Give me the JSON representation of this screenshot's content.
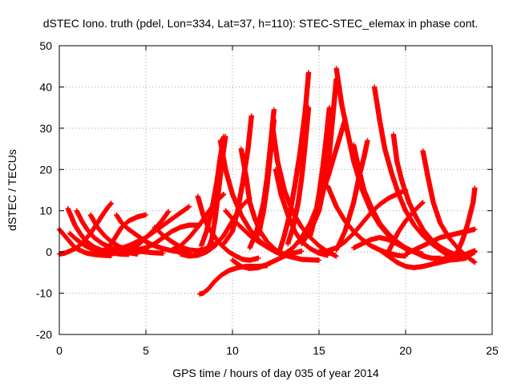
{
  "chart_data": {
    "type": "scatter",
    "title": "dSTEC Iono. truth (pdel, Lon=334, Lat=37, h=110): STEC-STEC_elemax in phase cont.",
    "xlabel": "GPS time / hours of day 035 of year 2014",
    "ylabel": "dSTEC  / TECUs",
    "xlim": [
      0,
      25
    ],
    "ylim": [
      -20,
      50
    ],
    "xticks": [
      0,
      5,
      10,
      15,
      20,
      25
    ],
    "yticks": [
      -20,
      -10,
      0,
      10,
      20,
      30,
      40,
      50
    ],
    "grid": true,
    "marker": "plus",
    "colors": {
      "series": "#ff0000"
    },
    "series": [
      {
        "x": [
          0.0,
          0.2,
          0.4,
          0.6,
          0.8,
          1.0,
          1.3,
          1.6,
          2.0,
          2.5,
          3.0
        ],
        "y": [
          5.5,
          4.5,
          3.5,
          2.5,
          1.5,
          0.8,
          0.2,
          -0.3,
          -0.6,
          -0.8,
          -0.9
        ]
      },
      {
        "x": [
          0.0,
          0.3,
          0.6,
          1.0,
          1.4,
          1.8,
          2.2,
          2.5,
          2.8,
          3.0
        ],
        "y": [
          -0.5,
          -0.3,
          0.2,
          1.0,
          2.5,
          4.5,
          7.0,
          9.0,
          10.8,
          11.8
        ]
      },
      {
        "x": [
          0.5,
          0.7,
          0.9,
          1.2,
          1.5,
          2.0,
          2.5,
          3.0,
          3.5,
          4.0
        ],
        "y": [
          10.5,
          8.5,
          6.5,
          4.5,
          2.8,
          1.2,
          0.3,
          -0.2,
          -0.5,
          -0.6
        ]
      },
      {
        "x": [
          0.6,
          1.0,
          1.5,
          2.0,
          2.4,
          2.8,
          3.0,
          3.3,
          3.6,
          4.0,
          4.5,
          5.0
        ],
        "y": [
          4.5,
          3.0,
          1.5,
          0.5,
          0.2,
          0.8,
          2.0,
          4.0,
          6.0,
          7.5,
          8.5,
          9.0
        ]
      },
      {
        "x": [
          1.0,
          1.3,
          1.6,
          2.0,
          2.5,
          3.0,
          3.5,
          4.0,
          4.5
        ],
        "y": [
          10.0,
          7.5,
          5.5,
          3.5,
          2.0,
          1.0,
          0.3,
          -0.2,
          -0.5
        ]
      },
      {
        "x": [
          1.8,
          2.2,
          2.6,
          3.0,
          3.5,
          4.0,
          4.5,
          5.0,
          5.5,
          6.0
        ],
        "y": [
          9.0,
          6.0,
          4.0,
          2.5,
          1.2,
          0.5,
          0.2,
          0.0,
          -0.2,
          -0.3
        ]
      },
      {
        "x": [
          2.5,
          3.0,
          3.5,
          4.0,
          4.5,
          5.0,
          5.5,
          6.0,
          6.5,
          7.0,
          7.5
        ],
        "y": [
          0.0,
          0.3,
          0.8,
          1.5,
          2.5,
          3.5,
          5.0,
          6.5,
          8.0,
          9.5,
          11.0
        ]
      },
      {
        "x": [
          3.3,
          3.6,
          4.0,
          4.5,
          5.0,
          5.5,
          6.0,
          6.5,
          7.0,
          7.5
        ],
        "y": [
          9.0,
          7.0,
          5.5,
          4.0,
          2.5,
          1.5,
          0.8,
          0.3,
          0.0,
          -0.3
        ]
      },
      {
        "x": [
          4.0,
          4.5,
          5.0,
          5.5,
          6.0,
          6.3
        ],
        "y": [
          0.3,
          1.5,
          3.5,
          5.5,
          8.0,
          9.8
        ]
      },
      {
        "x": [
          4.5,
          5.0,
          5.5,
          6.0,
          6.5,
          7.0,
          7.5,
          8.0
        ],
        "y": [
          0.5,
          1.0,
          2.0,
          3.5,
          5.0,
          6.0,
          6.5,
          6.5
        ]
      },
      {
        "x": [
          5.5,
          6.0,
          6.5,
          7.0,
          7.5,
          8.0,
          8.5,
          9.0
        ],
        "y": [
          6.0,
          4.0,
          2.5,
          1.2,
          0.5,
          0.3,
          0.8,
          2.0
        ]
      },
      {
        "x": [
          6.5,
          7.0,
          7.5,
          8.0,
          8.5,
          9.0,
          9.5
        ],
        "y": [
          0.5,
          1.5,
          3.5,
          6.0,
          9.0,
          12.0,
          14.0
        ]
      },
      {
        "x": [
          7.0,
          7.5,
          8.0,
          8.5,
          9.0,
          9.5,
          10.0,
          10.5,
          11.0
        ],
        "y": [
          -0.5,
          -1.0,
          -0.8,
          0.0,
          1.5,
          4.0,
          7.5,
          11.0,
          13.0
        ]
      },
      {
        "x": [
          8.0,
          8.3,
          8.6,
          9.0,
          9.4,
          9.8,
          10.2,
          10.6,
          11.0,
          11.5
        ],
        "y": [
          13.5,
          9.0,
          6.0,
          3.5,
          1.5,
          0.0,
          -1.0,
          -1.8,
          -2.0,
          -1.5
        ]
      },
      {
        "x": [
          8.1,
          8.3,
          8.6,
          9.0,
          9.4,
          9.8,
          10.3,
          10.8,
          11.5,
          12.0
        ],
        "y": [
          -10.2,
          -10.0,
          -9.0,
          -7.0,
          -5.5,
          -4.5,
          -3.8,
          -3.5,
          -3.5,
          -3.3
        ]
      },
      {
        "x": [
          8.2,
          8.5,
          8.8,
          9.1,
          9.3,
          9.5
        ],
        "y": [
          1.5,
          5.0,
          10.0,
          17.0,
          23.0,
          28.0
        ]
      },
      {
        "x": [
          8.5,
          8.8,
          9.0,
          9.2,
          9.4,
          9.6
        ],
        "y": [
          0.0,
          3.0,
          8.0,
          15.0,
          22.0,
          28.0
        ]
      },
      {
        "x": [
          9.3,
          9.6,
          10.0,
          10.5,
          11.0,
          11.5,
          12.0,
          12.5,
          13.0
        ],
        "y": [
          27.0,
          20.0,
          14.0,
          9.0,
          5.5,
          3.0,
          1.2,
          0.0,
          -0.8
        ]
      },
      {
        "x": [
          9.6,
          10.0,
          10.5,
          11.0,
          11.5,
          12.0,
          12.5,
          13.0,
          13.5
        ],
        "y": [
          10.0,
          8.0,
          6.0,
          4.0,
          2.5,
          1.2,
          0.3,
          -0.5,
          -1.0
        ]
      },
      {
        "x": [
          9.5,
          10.0,
          10.3,
          10.6,
          10.9,
          11.1
        ],
        "y": [
          2.0,
          5.0,
          10.0,
          17.0,
          25.0,
          33.0
        ]
      },
      {
        "x": [
          10.0,
          10.5,
          11.0,
          11.5,
          12.0,
          12.5,
          13.0,
          13.5,
          14.0
        ],
        "y": [
          -2.0,
          -3.5,
          -4.0,
          -3.8,
          -3.0,
          -2.0,
          -1.0,
          -0.3,
          0.2
        ]
      },
      {
        "x": [
          10.5,
          10.8,
          11.0,
          11.3,
          11.6,
          12.0,
          12.5,
          13.0,
          14.0,
          15.0
        ],
        "y": [
          25.0,
          18.0,
          12.0,
          8.0,
          5.0,
          2.5,
          0.5,
          -0.8,
          -1.8,
          -2.0
        ]
      },
      {
        "x": [
          11.0,
          11.4,
          11.8,
          12.0,
          12.2,
          12.4
        ],
        "y": [
          1.0,
          5.0,
          12.0,
          18.0,
          26.0,
          34.5
        ]
      },
      {
        "x": [
          11.5,
          11.8,
          12.0,
          12.2,
          12.4
        ],
        "y": [
          4.0,
          10.0,
          16.0,
          24.0,
          32.0
        ]
      },
      {
        "x": [
          12.3,
          12.6,
          13.0,
          13.5,
          14.0,
          14.5,
          15.0,
          15.5,
          16.0
        ],
        "y": [
          31.0,
          22.0,
          15.0,
          9.5,
          6.0,
          3.5,
          1.5,
          0.0,
          -1.0
        ]
      },
      {
        "x": [
          12.5,
          12.8,
          13.2,
          13.6,
          14.0,
          14.5,
          15.0,
          15.5
        ],
        "y": [
          20.0,
          14.0,
          9.0,
          5.0,
          2.5,
          0.8,
          -0.3,
          -0.8
        ]
      },
      {
        "x": [
          12.7,
          13.0,
          13.3,
          13.6,
          13.9,
          14.2,
          14.4
        ],
        "y": [
          0.0,
          4.0,
          9.0,
          16.0,
          24.0,
          34.0,
          43.5
        ]
      },
      {
        "x": [
          13.2,
          13.5,
          13.8,
          14.0,
          14.2,
          14.4
        ],
        "y": [
          2.0,
          6.0,
          12.0,
          18.0,
          26.0,
          35.0
        ]
      },
      {
        "x": [
          13.0,
          13.5,
          14.0,
          14.5,
          15.0,
          15.5,
          16.0,
          16.5
        ],
        "y": [
          -0.5,
          1.0,
          3.5,
          7.0,
          12.0,
          18.0,
          25.0,
          32.0
        ]
      },
      {
        "x": [
          14.0,
          14.5,
          15.0,
          15.3,
          15.6,
          15.8,
          16.0
        ],
        "y": [
          2.0,
          5.0,
          10.0,
          16.0,
          24.0,
          33.0,
          42.0
        ]
      },
      {
        "x": [
          14.5,
          14.8,
          15.0,
          15.2,
          15.4,
          15.6
        ],
        "y": [
          4.0,
          9.0,
          14.0,
          20.0,
          27.0,
          35.0
        ]
      },
      {
        "x": [
          15.0,
          15.5,
          16.0,
          16.5,
          17.0,
          17.5,
          18.0,
          18.5,
          19.0,
          19.5,
          20.0
        ],
        "y": [
          0.0,
          0.3,
          1.0,
          2.5,
          4.5,
          7.0,
          9.5,
          11.5,
          13.0,
          14.0,
          15.0
        ]
      },
      {
        "x": [
          16.0,
          16.3,
          16.7,
          17.0,
          17.5,
          18.0,
          18.5,
          19.0,
          19.5,
          20.0,
          20.5
        ],
        "y": [
          44.5,
          36.0,
          28.0,
          22.0,
          15.0,
          10.0,
          6.5,
          4.0,
          2.0,
          0.8,
          0.0
        ]
      },
      {
        "x": [
          15.5,
          16.0,
          16.5,
          17.0,
          17.5,
          18.0,
          18.5,
          19.0,
          19.5,
          20.0
        ],
        "y": [
          16.0,
          11.0,
          7.5,
          5.0,
          3.0,
          1.5,
          0.5,
          -0.3,
          -0.8,
          -1.0
        ]
      },
      {
        "x": [
          16.0,
          16.5,
          17.0,
          17.3,
          17.6,
          17.8
        ],
        "y": [
          0.5,
          5.0,
          12.0,
          18.0,
          23.0,
          27.0
        ]
      },
      {
        "x": [
          17.0,
          17.3,
          17.6,
          18.0,
          18.5,
          19.0,
          19.5,
          20.0,
          20.5,
          21.0
        ],
        "y": [
          26.0,
          20.0,
          15.0,
          11.0,
          7.0,
          4.5,
          2.5,
          1.0,
          0.0,
          -0.5
        ]
      },
      {
        "x": [
          17.0,
          17.5,
          18.0,
          18.5,
          19.0,
          19.5,
          20.0,
          20.5,
          21.0,
          21.5,
          22.0
        ],
        "y": [
          1.0,
          2.0,
          3.0,
          3.5,
          3.0,
          2.0,
          1.0,
          0.0,
          -1.0,
          -1.5,
          -1.5
        ]
      },
      {
        "x": [
          18.2,
          18.5,
          18.8,
          19.2,
          19.6,
          20.0,
          20.5,
          21.0,
          21.5,
          22.0,
          22.5
        ],
        "y": [
          40.0,
          32.0,
          25.0,
          19.0,
          14.0,
          10.0,
          6.5,
          4.0,
          2.0,
          0.5,
          -0.5
        ]
      },
      {
        "x": [
          18.5,
          19.0,
          19.5,
          20.0,
          20.5,
          21.0,
          21.5,
          22.0,
          22.5,
          23.0,
          23.5
        ],
        "y": [
          0.5,
          -1.0,
          -2.5,
          -3.5,
          -3.8,
          -3.5,
          -3.0,
          -2.5,
          -2.0,
          -1.8,
          -1.5
        ]
      },
      {
        "x": [
          19.3,
          19.5,
          19.8,
          20.2,
          20.6,
          21.0,
          21.5,
          22.0,
          22.5,
          23.0
        ],
        "y": [
          28.5,
          22.0,
          17.0,
          12.0,
          8.5,
          5.5,
          3.0,
          1.2,
          0.0,
          -0.8
        ]
      },
      {
        "x": [
          19.0,
          19.3,
          19.6,
          20.0,
          20.5,
          21.0
        ],
        "y": [
          0.0,
          2.5,
          5.0,
          7.5,
          10.0,
          12.0
        ]
      },
      {
        "x": [
          21.0,
          21.3,
          21.6,
          22.0,
          22.5,
          23.0,
          23.5,
          24.0
        ],
        "y": [
          24.5,
          18.0,
          12.0,
          7.0,
          3.5,
          1.0,
          -1.0,
          -2.5
        ]
      },
      {
        "x": [
          20.0,
          20.5,
          21.0,
          21.5,
          22.0,
          22.5,
          23.0,
          23.5,
          24.0
        ],
        "y": [
          -0.5,
          0.5,
          1.5,
          2.5,
          3.5,
          4.0,
          4.5,
          5.0,
          5.5
        ]
      },
      {
        "x": [
          21.0,
          21.5,
          22.0,
          22.5,
          23.0,
          23.5,
          24.0
        ],
        "y": [
          5.0,
          2.5,
          0.5,
          -1.0,
          -1.5,
          -1.2,
          0.0
        ]
      },
      {
        "x": [
          21.5,
          22.0,
          22.5,
          23.0,
          23.3,
          23.6,
          23.9,
          24.0
        ],
        "y": [
          -1.5,
          -1.8,
          -1.5,
          0.0,
          3.0,
          7.0,
          12.0,
          15.5
        ]
      },
      {
        "x": [
          22.0,
          22.5,
          23.0,
          23.5,
          24.0
        ],
        "y": [
          0.5,
          -0.3,
          -0.8,
          -0.5,
          0.3
        ]
      }
    ]
  }
}
